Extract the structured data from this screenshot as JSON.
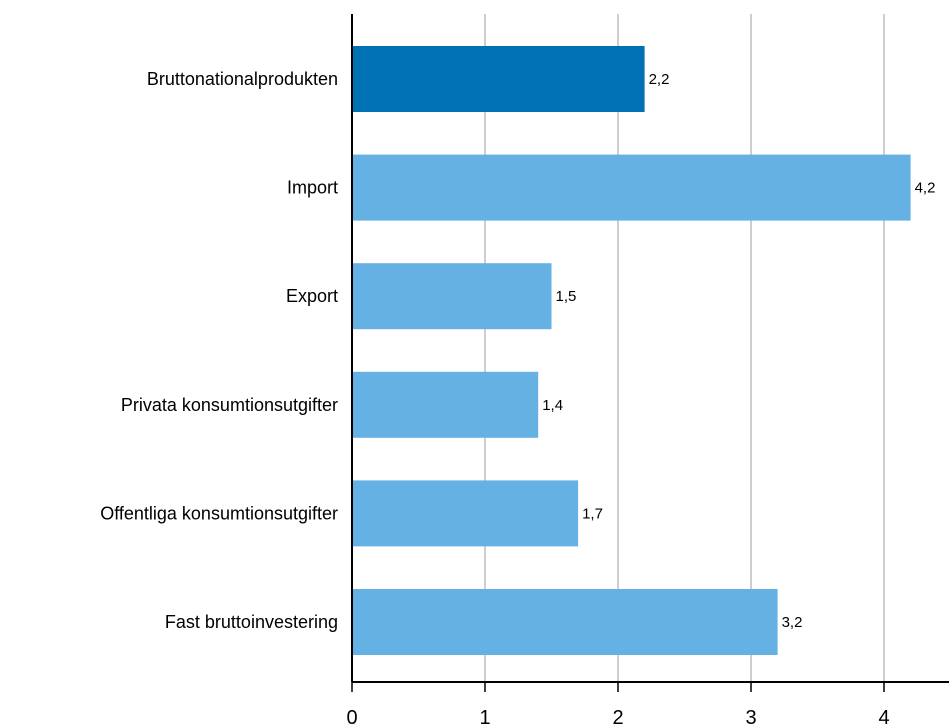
{
  "chart_data": {
    "type": "bar",
    "orientation": "horizontal",
    "title": "",
    "xlabel": "",
    "ylabel": "",
    "categories": [
      "Bruttonationalprodukten",
      "Import",
      "Export",
      "Privata konsumtionsutgifter",
      "Offentliga konsumtionsutgifter",
      "Fast bruttoinvestering"
    ],
    "values": [
      2.2,
      4.2,
      1.5,
      1.4,
      1.7,
      3.2
    ],
    "data_labels": [
      "2,2",
      "4,2",
      "1,5",
      "1,4",
      "1,7",
      "3,2"
    ],
    "xlim": [
      0,
      4.4
    ],
    "xticks": [
      0,
      1,
      2,
      3,
      4
    ],
    "xtick_labels": [
      "0",
      "1",
      "2",
      "3",
      "4"
    ],
    "grid": "vertical",
    "legend": "none",
    "colors": {
      "highlight": "#0071b3",
      "bar": "#65b1e4",
      "grid": "#bdbdbd",
      "axis": "#000000"
    },
    "highlight_index": 0
  }
}
